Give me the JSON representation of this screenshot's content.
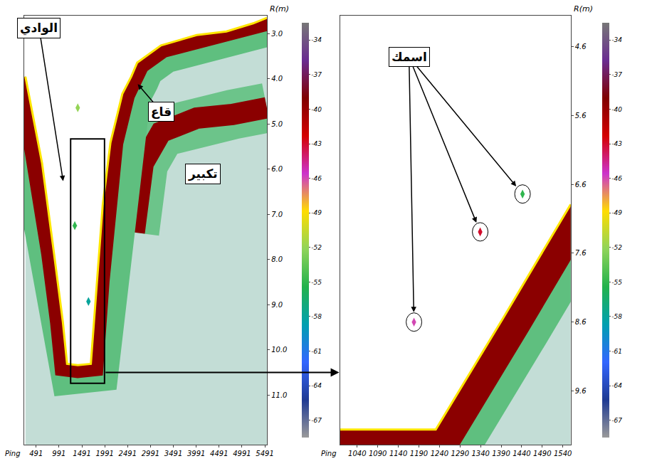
{
  "chart_data": [
    {
      "type": "echogram",
      "xlabel": "Ping",
      "ylabel": "R(m)",
      "xlim": [
        230,
        5540
      ],
      "xticks": [
        491,
        991,
        1491,
        1991,
        2491,
        2991,
        3491,
        3991,
        4491,
        4991,
        5491
      ],
      "ylim": [
        12.1,
        2.6
      ],
      "yticks": [
        {
          "value": 3,
          "label": "3.0"
        },
        {
          "value": 4,
          "label": "4.0"
        },
        {
          "value": 5,
          "label": "5.0"
        },
        {
          "value": 6,
          "label": "6.0"
        },
        {
          "value": 7,
          "label": "7.0"
        },
        {
          "value": 8,
          "label": "8.0"
        },
        {
          "value": 9,
          "label": "9.0"
        },
        {
          "value": 10,
          "label": "10.0"
        },
        {
          "value": 11,
          "label": "11.0"
        }
      ],
      "bottom": {
        "x": [
          257,
          621,
          881,
          1076,
          1167,
          1401,
          1687,
          1817,
          1947,
          2116,
          2376,
          2571,
          2701,
          3221,
          4001,
          4651,
          5236,
          5535
        ],
        "y": [
          3.95,
          5.87,
          7.86,
          9.39,
          10.31,
          10.34,
          10.31,
          8.47,
          6.79,
          5.41,
          4.33,
          3.95,
          3.64,
          3.26,
          3.03,
          2.95,
          2.77,
          2.65
        ]
      },
      "second_echo": {
        "x": [
          2636,
          2831,
          3221,
          4001,
          4781,
          5535
        ],
        "y": [
          7.4,
          5.87,
          5.18,
          4.87,
          4.79,
          4.64
        ]
      },
      "targets": {
        "x": [
          1401,
          1336,
          1635
        ],
        "y": [
          4.64,
          7.25,
          8.93
        ],
        "values": [
          -52,
          -55,
          -58
        ]
      },
      "colorbar": {
        "range": [
          -68.5,
          -32.5
        ],
        "ticks": [
          -34,
          -37,
          -40,
          -43,
          -46,
          -49,
          -52,
          -55,
          -58,
          -61,
          -64,
          -67
        ]
      },
      "zoom_box": {
        "x": [
          1245,
          1986
        ],
        "y": [
          5.33,
          10.74
        ]
      },
      "annotations": [
        {
          "text": "الوادي",
          "at": [
            556,
            2.88
          ],
          "points_to": [
            [
              1115,
              6.48
            ]
          ]
        },
        {
          "text": "قاع",
          "at": [
            3221,
            4.72
          ],
          "points_to": [
            [
              2571,
              3.95
            ]
          ]
        },
        {
          "text": "تكبير",
          "at": [
            4131,
            6.1
          ]
        }
      ]
    },
    {
      "type": "echogram",
      "xlabel": "Ping",
      "ylabel": "R(m)",
      "xlim": [
        998,
        1559
      ],
      "xticks": [
        1040,
        1090,
        1140,
        1190,
        1240,
        1290,
        1340,
        1390,
        1440,
        1490,
        1540
      ],
      "ylim": [
        10.38,
        4.15
      ],
      "yticks": [
        4.6,
        5.6,
        6.6,
        7.6,
        8.6,
        9.6
      ],
      "bottom": {
        "x": [
          998,
          1231,
          1396,
          1559
        ],
        "y": [
          10.16,
          10.16,
          8.53,
          6.89
        ]
      },
      "targets": {
        "x": [
          1178,
          1339,
          1442
        ],
        "y": [
          8.6,
          7.29,
          6.74
        ],
        "values": [
          -46,
          -43,
          -55
        ]
      },
      "colorbar": {
        "range": [
          -68.5,
          -32.5
        ],
        "ticks": [
          -34,
          -37,
          -40,
          -43,
          -46,
          -49,
          -52,
          -55,
          -58,
          -61,
          -64,
          -67
        ]
      },
      "annotations": [
        {
          "text": "اسمك",
          "at": [
            1166,
            4.75
          ],
          "points_to": [
            [
              1178,
              8.6
            ],
            [
              1339,
              7.29
            ],
            [
              1442,
              6.74
            ]
          ]
        }
      ]
    }
  ]
}
